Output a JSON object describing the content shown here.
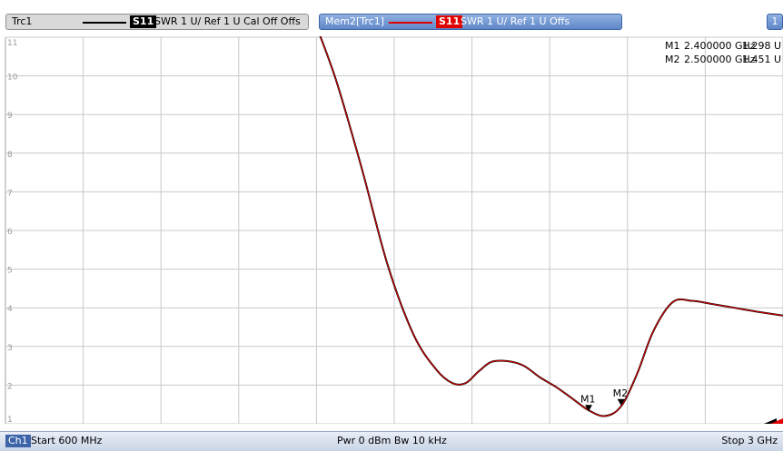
{
  "trace1": {
    "name": "Trc1",
    "param": "S11",
    "info": "SWR 1 U/ Ref 1 U  Cal Off Offs",
    "line_color": "#000000"
  },
  "trace2": {
    "name": "Mem2[Trc1]",
    "param": "S11",
    "info": "SWR 1 U/ Ref 1 U  Offs",
    "line_color": "#e00000"
  },
  "channel_tab": "1",
  "markers": [
    {
      "label": "M1",
      "freq_text": "2.400000 GHz",
      "value_text": "1.298 U",
      "x_ghz": 2.4,
      "y": 1.298
    },
    {
      "label": "M2",
      "freq_text": "2.500000 GHz",
      "value_text": "1.451 U",
      "x_ghz": 2.5,
      "y": 1.451
    }
  ],
  "statusbar": {
    "channel": "Ch1",
    "start": "Start  600 MHz",
    "power_bw": "Pwr  0 dBm  Bw  10 kHz",
    "stop": "Stop  3 GHz"
  },
  "chart_data": {
    "type": "line",
    "xlim": [
      0.6,
      3.0
    ],
    "ylim": [
      1,
      11
    ],
    "yticks": [
      "11",
      "10",
      "9",
      "8",
      "7",
      "6",
      "5",
      "4",
      "3",
      "2",
      "1"
    ],
    "grid": true,
    "series": [
      {
        "color": "#000000",
        "x": [
          1.55,
          1.62,
          1.7,
          1.78,
          1.86,
          1.93,
          1.98,
          2.02,
          2.06,
          2.1,
          2.15,
          2.2,
          2.25,
          2.3,
          2.35,
          2.4,
          2.45,
          2.5,
          2.55,
          2.6,
          2.66,
          2.72,
          2.78,
          2.85,
          2.92,
          3.0
        ],
        "y": [
          11.5,
          9.9,
          7.6,
          5.1,
          3.3,
          2.4,
          2.05,
          2.05,
          2.35,
          2.6,
          2.62,
          2.5,
          2.2,
          1.95,
          1.65,
          1.35,
          1.2,
          1.45,
          2.3,
          3.4,
          4.15,
          4.18,
          4.1,
          4.0,
          3.9,
          3.8
        ]
      },
      {
        "color": "#e00000",
        "x": [
          1.55,
          1.62,
          1.7,
          1.78,
          1.86,
          1.93,
          1.98,
          2.02,
          2.06,
          2.1,
          2.15,
          2.2,
          2.25,
          2.3,
          2.35,
          2.4,
          2.45,
          2.5,
          2.55,
          2.6,
          2.66,
          2.72,
          2.78,
          2.85,
          2.92,
          3.0
        ],
        "y": [
          11.5,
          9.9,
          7.6,
          5.1,
          3.3,
          2.4,
          2.05,
          2.05,
          2.35,
          2.6,
          2.62,
          2.5,
          2.2,
          1.95,
          1.65,
          1.35,
          1.2,
          1.45,
          2.3,
          3.4,
          4.15,
          4.18,
          4.1,
          4.0,
          3.9,
          3.8
        ]
      }
    ]
  },
  "colors": {
    "grid": "#c8c8c8",
    "tab_active": "#5f86c8",
    "accent_red": "#e00000"
  }
}
